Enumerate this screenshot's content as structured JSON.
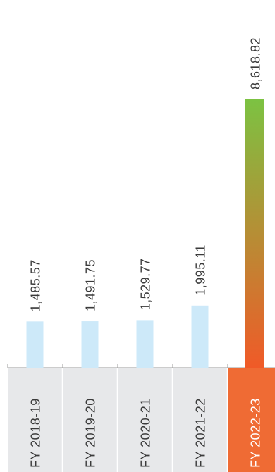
{
  "chart_data": {
    "type": "bar",
    "categories": [
      "FY 2018-19",
      "FY 2019-20",
      "FY 2020-21",
      "FY 2021-22",
      "FY 2022-23"
    ],
    "values": [
      1485.57,
      1491.75,
      1529.77,
      1995.11,
      8618.82
    ],
    "value_labels": [
      "1,485.57",
      "1,491.75",
      "1,529.77",
      "1,995.11",
      "8,618.82"
    ],
    "title": "",
    "xlabel": "",
    "ylabel": "",
    "ylim": [
      0,
      8618.82
    ],
    "grid": false,
    "orientation": "vertical bars, labels rotated 90°",
    "highlight_index": 4,
    "colors": {
      "bar": "#cde9f9",
      "highlight_bar_top": "#7cc242",
      "highlight_bar_bottom": "#f05a28",
      "category_cell": "#e7e8ea",
      "highlight_cell": "#ef6b34",
      "text": "#3a3a3a",
      "highlight_text": "#ffffff",
      "axis": "#9a9a9a"
    }
  }
}
